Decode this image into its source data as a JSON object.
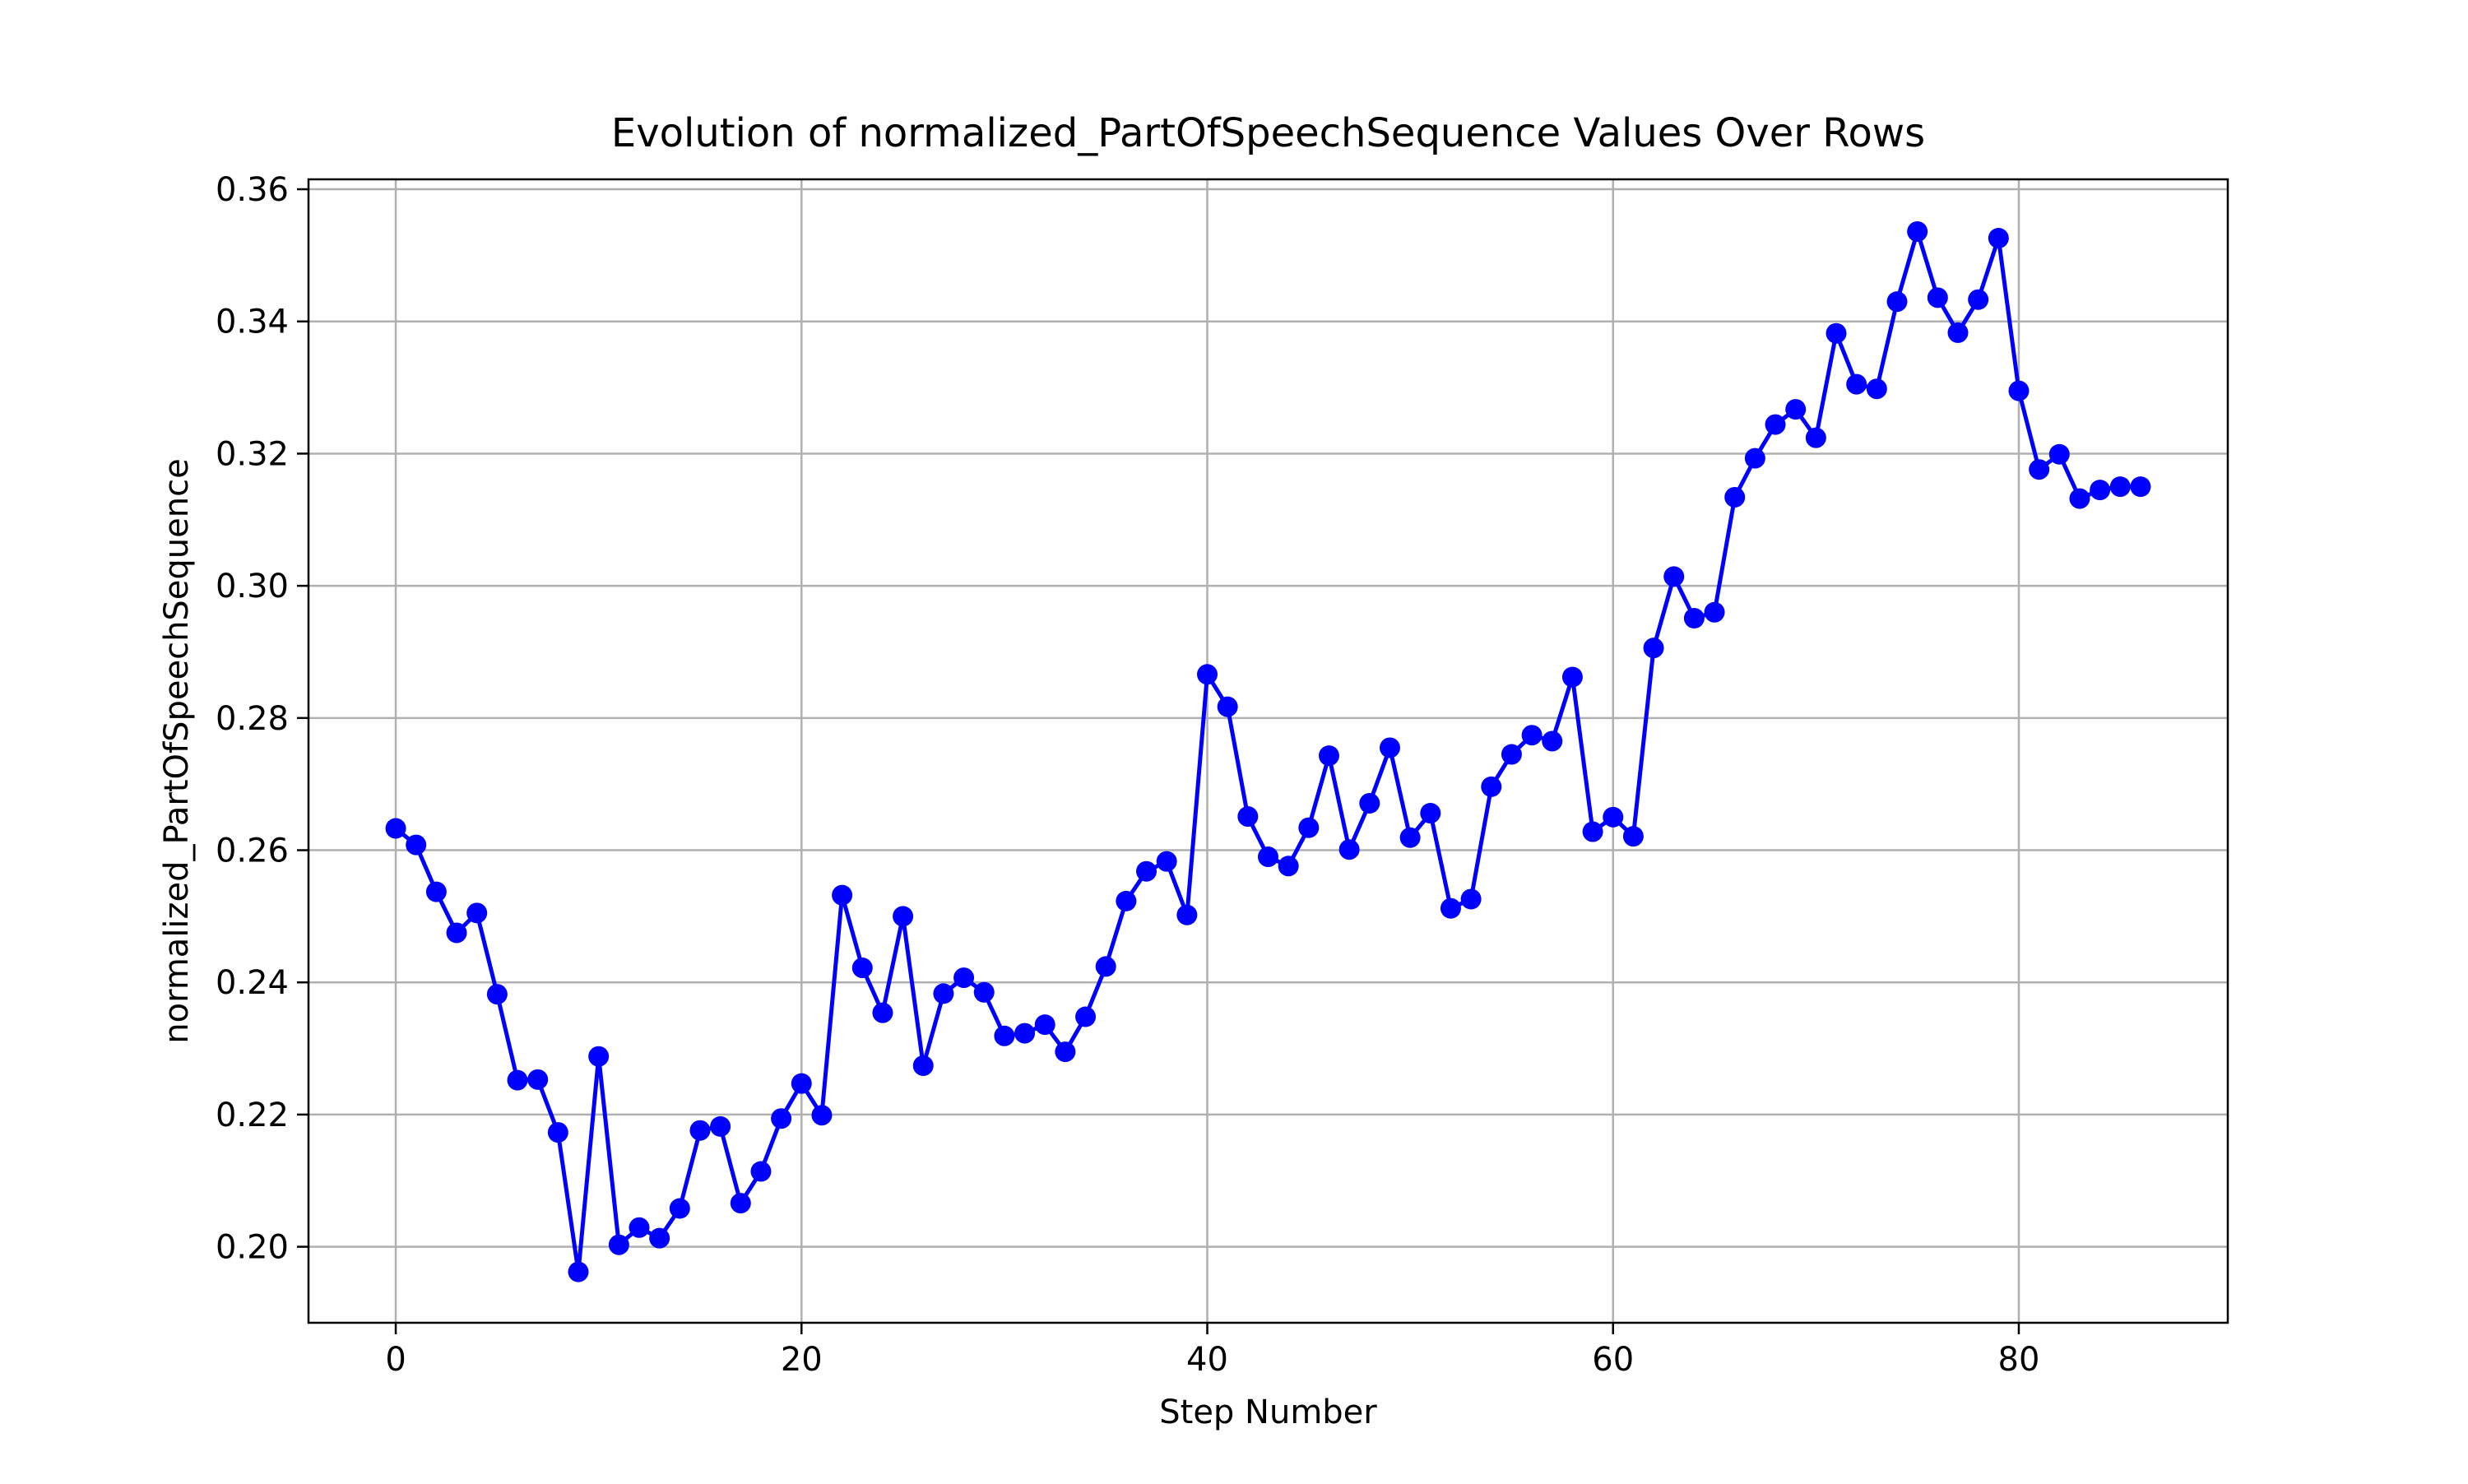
{
  "chart_data": {
    "type": "line",
    "title": "Evolution of normalized_PartOfSpeechSequence Values Over Rows",
    "xlabel": "Step Number",
    "ylabel": "normalized_PartOfSpeechSequence",
    "xlim": [
      -4.3,
      90.3
    ],
    "ylim": [
      0.1885,
      0.3615
    ],
    "xticks": [
      0,
      20,
      40,
      60,
      80
    ],
    "xtick_labels": [
      "0",
      "20",
      "40",
      "60",
      "80"
    ],
    "yticks": [
      0.2,
      0.22,
      0.24,
      0.26,
      0.28,
      0.3,
      0.32,
      0.34,
      0.36
    ],
    "ytick_labels": [
      "0.20",
      "0.22",
      "0.24",
      "0.26",
      "0.28",
      "0.30",
      "0.32",
      "0.34",
      "0.36"
    ],
    "grid": true,
    "legend": "none",
    "series": [
      {
        "color": "#0000ff",
        "marker": "circle",
        "x": [
          0,
          1,
          2,
          3,
          4,
          5,
          6,
          7,
          8,
          9,
          10,
          11,
          12,
          13,
          14,
          15,
          16,
          17,
          18,
          19,
          20,
          21,
          22,
          23,
          24,
          25,
          26,
          27,
          28,
          29,
          30,
          31,
          32,
          33,
          34,
          35,
          36,
          37,
          38,
          39,
          40,
          41,
          42,
          43,
          44,
          45,
          46,
          47,
          48,
          49,
          50,
          51,
          52,
          53,
          54,
          55,
          56,
          57,
          58,
          59,
          60,
          61,
          62,
          63,
          64,
          65,
          66,
          67,
          68,
          69,
          70,
          71,
          72,
          73,
          74,
          75,
          76,
          77,
          78,
          79,
          80,
          81,
          82,
          83,
          84,
          85,
          86
        ],
        "values": [
          0.2633,
          0.2608,
          0.2537,
          0.2475,
          0.2505,
          0.2382,
          0.2252,
          0.2253,
          0.2173,
          0.1962,
          0.2288,
          0.2003,
          0.2029,
          0.2013,
          0.2058,
          0.2176,
          0.2182,
          0.2066,
          0.2114,
          0.2194,
          0.2247,
          0.2199,
          0.2532,
          0.2422,
          0.2354,
          0.25,
          0.2274,
          0.2383,
          0.2407,
          0.2385,
          0.2319,
          0.2323,
          0.2336,
          0.2295,
          0.2348,
          0.2424,
          0.2523,
          0.2568,
          0.2583,
          0.2502,
          0.2866,
          0.2817,
          0.2651,
          0.259,
          0.2576,
          0.2634,
          0.2743,
          0.2601,
          0.2671,
          0.2755,
          0.2619,
          0.2656,
          0.2512,
          0.2526,
          0.2696,
          0.2745,
          0.2774,
          0.2765,
          0.2862,
          0.2628,
          0.265,
          0.2621,
          0.2906,
          0.3014,
          0.2951,
          0.296,
          0.3134,
          0.3193,
          0.3244,
          0.3267,
          0.3224,
          0.3382,
          0.3305,
          0.3298,
          0.343,
          0.3536,
          0.3436,
          0.3383,
          0.3433,
          0.3526,
          0.3295,
          0.3176,
          0.3199,
          0.3132,
          0.3145,
          0.315,
          0.315
        ]
      }
    ]
  }
}
